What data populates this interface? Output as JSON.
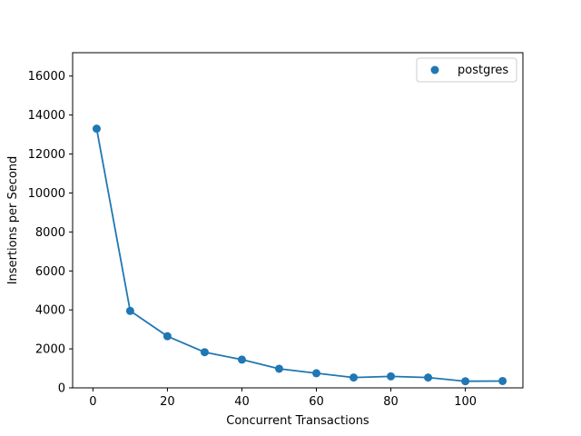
{
  "chart_data": {
    "type": "line",
    "title": "",
    "xlabel": "Concurrent Transactions",
    "ylabel": "Insertions per Second",
    "xlim": [
      -5.45,
      115.45
    ],
    "ylim": [
      0,
      17200
    ],
    "xticks": [
      0,
      20,
      40,
      60,
      80,
      100
    ],
    "yticks": [
      0,
      2000,
      4000,
      6000,
      8000,
      10000,
      12000,
      14000,
      16000
    ],
    "grid": false,
    "legend_position": "top-right",
    "series": [
      {
        "name": "postgres",
        "color": "#1f77b4",
        "marker": "circle",
        "x": [
          1,
          10,
          20,
          30,
          40,
          50,
          60,
          70,
          80,
          90,
          100,
          110
        ],
        "y": [
          13300,
          3950,
          2650,
          1830,
          1450,
          980,
          750,
          530,
          590,
          530,
          340,
          350
        ]
      }
    ]
  }
}
